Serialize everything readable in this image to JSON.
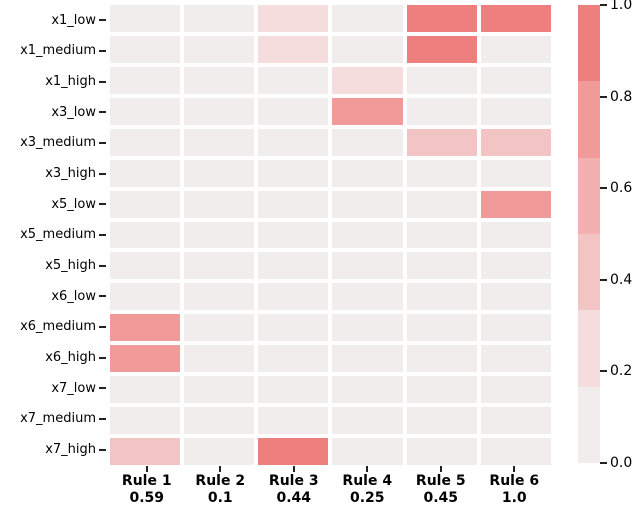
{
  "figure": {
    "background": "#ffffff",
    "text_color": "#000000",
    "tick_color": "#222222"
  },
  "chart_data": {
    "type": "heatmap",
    "title": "",
    "xlabel": "",
    "ylabel": "",
    "rows": [
      "x1_low",
      "x1_medium",
      "x1_high",
      "x3_low",
      "x3_medium",
      "x3_high",
      "x5_low",
      "x5_medium",
      "x5_high",
      "x6_low",
      "x6_medium",
      "x6_high",
      "x7_low",
      "x7_medium",
      "x7_high"
    ],
    "columns": [
      {
        "label": "Rule 1",
        "weight": "0.59"
      },
      {
        "label": "Rule 2",
        "weight": "0.1"
      },
      {
        "label": "Rule 3",
        "weight": "0.44"
      },
      {
        "label": "Rule 4",
        "weight": "0.25"
      },
      {
        "label": "Rule 5",
        "weight": "0.45"
      },
      {
        "label": "Rule 6",
        "weight": "1.0"
      }
    ],
    "values": [
      [
        0,
        0,
        0.25,
        0,
        0.92,
        0.92
      ],
      [
        0,
        0,
        0.25,
        0,
        0.92,
        0
      ],
      [
        0,
        0,
        0,
        0.25,
        0,
        0
      ],
      [
        0,
        0,
        0,
        0.75,
        0,
        0
      ],
      [
        0,
        0,
        0,
        0,
        0.45,
        0.45
      ],
      [
        0,
        0,
        0,
        0,
        0,
        0
      ],
      [
        0,
        0,
        0,
        0,
        0,
        0.75
      ],
      [
        0,
        0,
        0,
        0,
        0,
        0
      ],
      [
        0,
        0,
        0,
        0,
        0,
        0
      ],
      [
        0,
        0,
        0,
        0,
        0,
        0
      ],
      [
        0.75,
        0,
        0,
        0,
        0,
        0
      ],
      [
        0.75,
        0,
        0,
        0,
        0,
        0
      ],
      [
        0,
        0,
        0,
        0,
        0,
        0
      ],
      [
        0,
        0,
        0,
        0,
        0,
        0
      ],
      [
        0.45,
        0,
        0.92,
        0,
        0,
        0
      ]
    ],
    "value_range": [
      0,
      1
    ],
    "palette": [
      "#f1eded",
      "#f5dddd",
      "#f3c4c4",
      "#f2b0b0",
      "#f09a9a",
      "#ee7f7f"
    ],
    "grid_line_color": "#ffffff",
    "legend_position": "right",
    "colorbar": {
      "ticks": [
        "1.0",
        "0.8",
        "0.6",
        "0.4",
        "0.2",
        "0.0"
      ]
    }
  }
}
